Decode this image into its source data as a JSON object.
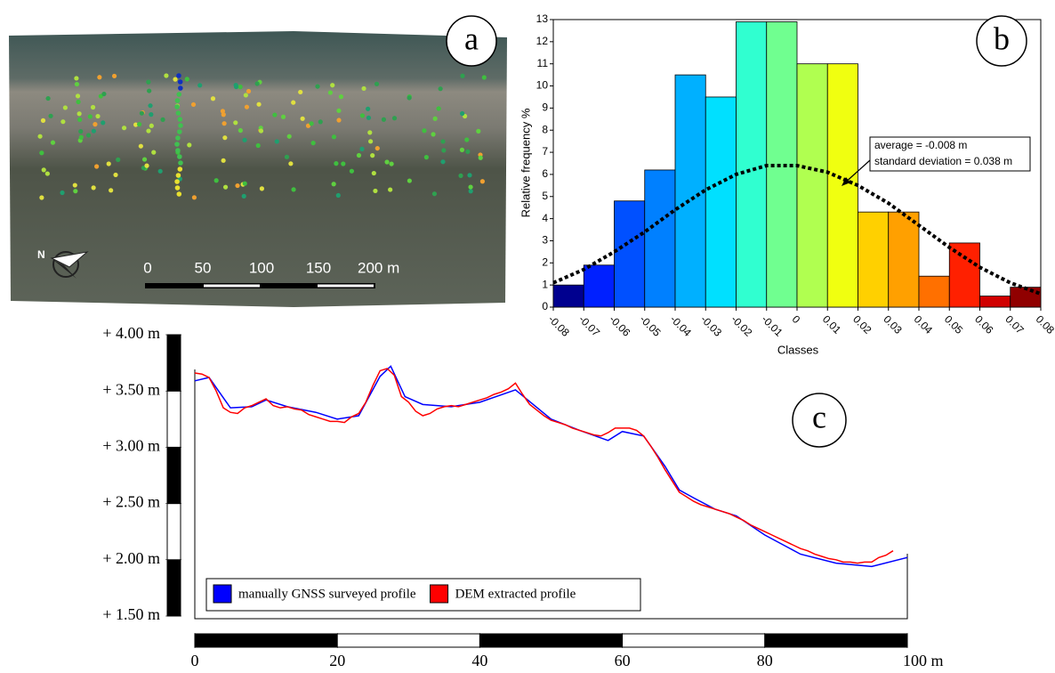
{
  "panel_a": {
    "label": "a",
    "north": "N",
    "scale_labels": [
      "0",
      "50",
      "100",
      "150",
      "200 m"
    ]
  },
  "chart_data": [
    {
      "type": "histogram",
      "label": "b",
      "x_label": "Classes",
      "y_label": "Relative frequency %",
      "bins": [
        -0.08,
        -0.07,
        -0.06,
        -0.05,
        -0.04,
        -0.03,
        -0.02,
        -0.01,
        0,
        0.01,
        0.02,
        0.03,
        0.04,
        0.05,
        0.06,
        0.07,
        0.08
      ],
      "values": [
        1,
        1.9,
        4.8,
        6.2,
        10.5,
        9.5,
        12.9,
        12.9,
        11,
        11,
        4.3,
        4.3,
        1.4,
        2.9,
        0.5,
        0.9
      ],
      "colors": [
        "#00008f",
        "#0020ff",
        "#0050ff",
        "#0080ff",
        "#00b0ff",
        "#00e0ff",
        "#30ffd0",
        "#70ff90",
        "#b0ff50",
        "#f0ff10",
        "#ffd000",
        "#ffa000",
        "#ff7000",
        "#ff2000",
        "#d00000",
        "#900000"
      ],
      "xlim": [
        -0.08,
        0.08
      ],
      "ylim": [
        0,
        13
      ],
      "xticks": [
        -0.08,
        -0.07,
        -0.06,
        -0.05,
        -0.04,
        -0.03,
        -0.02,
        -0.01,
        0,
        0.01,
        0.02,
        0.03,
        0.04,
        0.05,
        0.06,
        0.07,
        0.08
      ],
      "yticks": [
        0,
        1,
        2,
        3,
        4,
        5,
        6,
        7,
        8,
        9,
        10,
        11,
        12,
        13
      ],
      "grid": false,
      "curve": {
        "x": [
          -0.08,
          -0.07,
          -0.06,
          -0.05,
          -0.04,
          -0.03,
          -0.02,
          -0.01,
          0,
          0.01,
          0.02,
          0.03,
          0.04,
          0.05,
          0.06,
          0.07,
          0.08
        ],
        "values": [
          1.1,
          1.7,
          2.5,
          3.4,
          4.4,
          5.3,
          6.0,
          6.4,
          6.4,
          6.1,
          5.5,
          4.7,
          3.7,
          2.7,
          1.8,
          1.1,
          0.6
        ]
      },
      "annotations": [
        "average = -0.008 m",
        "standard deviation = 0.038 m"
      ]
    },
    {
      "type": "line",
      "label": "c",
      "xlim": [
        0,
        100
      ],
      "ylim": [
        1.5,
        4
      ],
      "xticks": [
        0,
        20,
        40,
        60,
        80,
        {
          "value": 100,
          "label": "100 m"
        }
      ],
      "yticks": [
        {
          "value": 1.5,
          "label": "+ 1.50 m"
        },
        {
          "value": 2,
          "label": "+ 2.00 m"
        },
        {
          "value": 2.5,
          "label": "+ 2.50 m"
        },
        {
          "value": 3,
          "label": "+ 3.00 m"
        },
        {
          "value": 3.5,
          "label": "+ 3.50 m"
        },
        {
          "value": 4,
          "label": "+ 4.00 m"
        }
      ],
      "legend": "lower left",
      "series": [
        {
          "name": "manually GNSS surveyed profile",
          "color": "#0000ff",
          "x": [
            0,
            2,
            5,
            8,
            10,
            13,
            17,
            20,
            23,
            26,
            27.5,
            29.5,
            32,
            36,
            40,
            45,
            50,
            54,
            58,
            60,
            63,
            66,
            68,
            70,
            73,
            76,
            80,
            85,
            90,
            95,
            100
          ],
          "values": [
            3.59,
            3.62,
            3.35,
            3.36,
            3.42,
            3.36,
            3.31,
            3.25,
            3.28,
            3.63,
            3.72,
            3.45,
            3.38,
            3.36,
            3.4,
            3.51,
            3.25,
            3.15,
            3.06,
            3.14,
            3.1,
            2.83,
            2.62,
            2.55,
            2.45,
            2.39,
            2.22,
            2.05,
            1.97,
            1.94,
            2.02
          ]
        },
        {
          "name": "DEM extracted profile",
          "color": "#ff0000",
          "x": [
            0,
            1,
            2,
            3,
            4,
            5,
            6,
            7,
            8,
            9,
            10,
            11,
            12,
            13,
            14,
            15,
            16,
            17,
            18,
            19,
            20,
            21,
            22,
            23,
            24,
            25,
            26,
            27,
            28,
            29,
            30,
            31,
            32,
            33,
            34,
            35,
            36,
            37,
            38,
            39,
            40,
            41,
            42,
            43,
            44,
            45,
            46,
            47,
            48,
            49,
            50,
            51,
            52,
            53,
            54,
            55,
            56,
            57,
            58,
            59,
            60,
            61,
            62,
            63,
            64,
            65,
            66,
            67,
            68,
            69,
            70,
            71,
            72,
            73,
            74,
            75,
            76,
            77,
            78,
            79,
            80,
            81,
            82,
            83,
            84,
            85,
            86,
            87,
            88,
            89,
            90,
            91,
            92,
            93,
            94,
            95,
            96,
            97,
            98
          ],
          "values": [
            3.66,
            3.65,
            3.62,
            3.5,
            3.35,
            3.31,
            3.3,
            3.35,
            3.37,
            3.4,
            3.43,
            3.37,
            3.35,
            3.36,
            3.34,
            3.33,
            3.29,
            3.27,
            3.25,
            3.23,
            3.23,
            3.22,
            3.27,
            3.3,
            3.4,
            3.55,
            3.68,
            3.7,
            3.64,
            3.45,
            3.4,
            3.32,
            3.28,
            3.3,
            3.34,
            3.36,
            3.37,
            3.36,
            3.38,
            3.4,
            3.42,
            3.44,
            3.47,
            3.49,
            3.52,
            3.57,
            3.47,
            3.38,
            3.33,
            3.28,
            3.24,
            3.22,
            3.2,
            3.17,
            3.15,
            3.13,
            3.11,
            3.1,
            3.13,
            3.17,
            3.17,
            3.17,
            3.15,
            3.1,
            3.01,
            2.91,
            2.8,
            2.7,
            2.6,
            2.56,
            2.52,
            2.49,
            2.47,
            2.45,
            2.43,
            2.41,
            2.38,
            2.35,
            2.31,
            2.28,
            2.25,
            2.22,
            2.19,
            2.16,
            2.13,
            2.1,
            2.08,
            2.05,
            2.03,
            2.01,
            2,
            1.98,
            1.98,
            1.97,
            1.98,
            1.98,
            2.02,
            2.04,
            2.08
          ]
        }
      ]
    }
  ]
}
